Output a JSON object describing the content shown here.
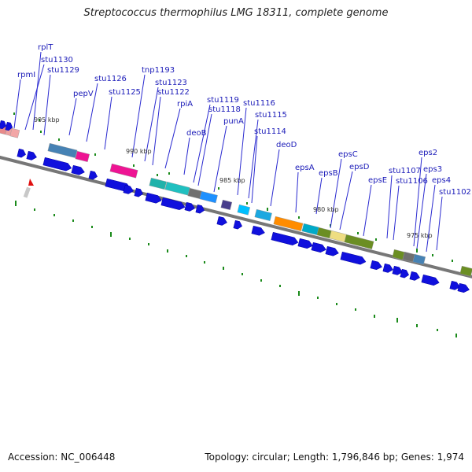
{
  "title": "Streptococcus thermophilus LMG 18311, complete genome",
  "footer": {
    "accession": "Accession: NC_006448",
    "summary": "Topology: circular; Length: 1,796,846 bp; Genes: 1,974"
  },
  "colors": {
    "label": "#1a1ab8",
    "leader_line": "#2a2ad0",
    "backbone": "#777777",
    "cds_arrow": "#1010dd",
    "gc_tick": "#1a8a1a"
  },
  "kbp_markers": [
    {
      "label": "995 kbp"
    },
    {
      "label": "990 kbp"
    },
    {
      "label": "985 kbp"
    },
    {
      "label": "980 kbp"
    },
    {
      "label": "975 kbp"
    }
  ],
  "gene_labels": [
    {
      "name": "rplT"
    },
    {
      "name": "stu1130"
    },
    {
      "name": "rpmI"
    },
    {
      "name": "stu1129"
    },
    {
      "name": "pepV"
    },
    {
      "name": "stu1126"
    },
    {
      "name": "stu1125"
    },
    {
      "name": "tnp1193"
    },
    {
      "name": "stu1123"
    },
    {
      "name": "stu1122"
    },
    {
      "name": "rpiA"
    },
    {
      "name": "stu1119"
    },
    {
      "name": "stu1118"
    },
    {
      "name": "stu1116"
    },
    {
      "name": "stu1115"
    },
    {
      "name": "punA"
    },
    {
      "name": "deoB"
    },
    {
      "name": "stu1114"
    },
    {
      "name": "deoD"
    },
    {
      "name": "epsC"
    },
    {
      "name": "epsA"
    },
    {
      "name": "epsB"
    },
    {
      "name": "epsD"
    },
    {
      "name": "epsE"
    },
    {
      "name": "eps2"
    },
    {
      "name": "stu1107"
    },
    {
      "name": "eps3"
    },
    {
      "name": "stu1106"
    },
    {
      "name": "eps4"
    },
    {
      "name": "stu1102"
    }
  ]
}
